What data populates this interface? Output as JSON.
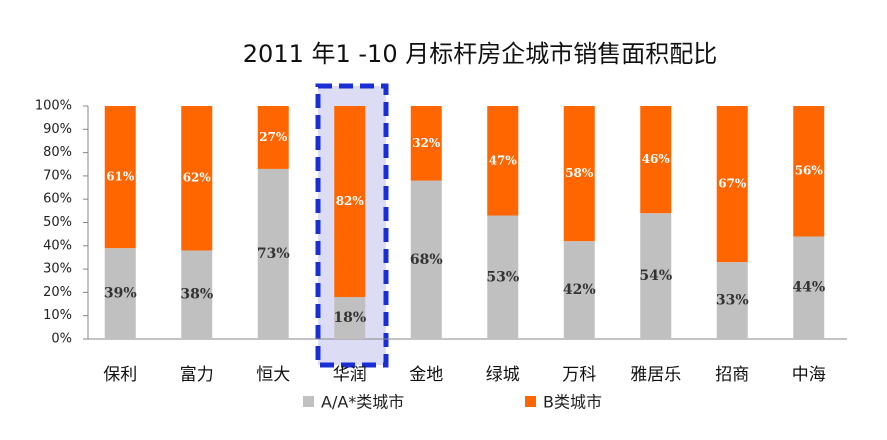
{
  "chart_data": {
    "type": "stacked_bar",
    "title": "2011 年1 -10 月标杆房企城市销售面积配比",
    "categories": [
      "保利",
      "富力",
      "恒大",
      "华润",
      "金地",
      "绿城",
      "万科",
      "雅居乐",
      "招商",
      "中海"
    ],
    "series": [
      {
        "name": "A/A*类城市",
        "color": "#c0c0c0",
        "values": [
          39,
          38,
          73,
          18,
          68,
          53,
          42,
          54,
          33,
          44
        ],
        "value_labels": [
          "39%",
          "38%",
          "73%",
          "18%",
          "68%",
          "53%",
          "42%",
          "54%",
          "33%",
          "44%"
        ]
      },
      {
        "name": "B类城市",
        "color": "#ff6600",
        "values": [
          61,
          62,
          27,
          82,
          32,
          47,
          58,
          46,
          67,
          56
        ],
        "value_labels": [
          "61%",
          "62%",
          "27%",
          "82%",
          "32%",
          "47%",
          "58%",
          "46%",
          "67%",
          "56%"
        ]
      }
    ],
    "ylim": [
      0,
      100
    ],
    "yticks": [
      {
        "value": 0,
        "label": "0%"
      },
      {
        "value": 10,
        "label": "10%"
      },
      {
        "value": 20,
        "label": "20%"
      },
      {
        "value": 30,
        "label": "30%"
      },
      {
        "value": 40,
        "label": "40%"
      },
      {
        "value": 50,
        "label": "50%"
      },
      {
        "value": 60,
        "label": "60%"
      },
      {
        "value": 70,
        "label": "70%"
      },
      {
        "value": 80,
        "label": "80%"
      },
      {
        "value": 90,
        "label": "90%"
      },
      {
        "value": 100,
        "label": "100%"
      }
    ],
    "grid": false
  }
}
